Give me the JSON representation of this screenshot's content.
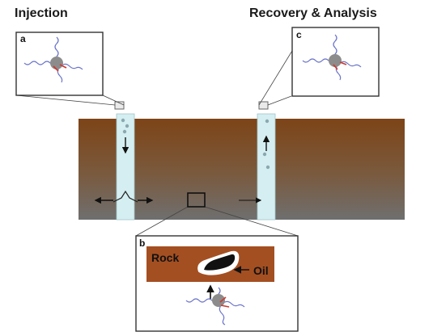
{
  "headings": {
    "injection": "Injection",
    "recovery": "Recovery & Analysis"
  },
  "panels": {
    "a": "a",
    "b": "b",
    "c": "c"
  },
  "labels": {
    "rock": "Rock",
    "oil": "Oil"
  },
  "colors": {
    "ground_top": "#7d4417",
    "ground_bottom": "#6f6f6f",
    "well": "#d5eef1",
    "rock": "#a44f22",
    "strand": "#6b74c9",
    "core": "#8c8c8c",
    "link": "#cc3a2e"
  }
}
